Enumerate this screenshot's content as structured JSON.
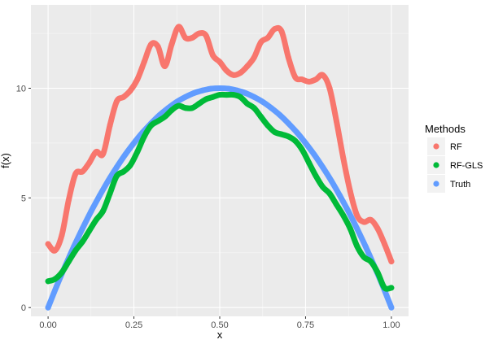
{
  "chart_data": {
    "type": "scatter",
    "title": "",
    "xlabel": "x",
    "ylabel": "f(x)",
    "xlim": [
      -0.05,
      1.05
    ],
    "ylim": [
      -0.4,
      13.8
    ],
    "x_ticks": [
      0.0,
      0.25,
      0.5,
      0.75,
      1.0
    ],
    "x_tick_labels": [
      "0.00",
      "0.25",
      "0.50",
      "0.75",
      "1.00"
    ],
    "y_ticks": [
      0,
      5,
      10
    ],
    "y_tick_labels": [
      "0",
      "5",
      "10"
    ],
    "background": "#ebebeb",
    "grid": true,
    "legend": {
      "title": "Methods",
      "position": "right"
    },
    "series": [
      {
        "name": "RF",
        "color": "#F8766D",
        "x": [
          0.0,
          0.02,
          0.04,
          0.06,
          0.08,
          0.1,
          0.12,
          0.14,
          0.16,
          0.18,
          0.2,
          0.22,
          0.24,
          0.26,
          0.28,
          0.3,
          0.32,
          0.34,
          0.36,
          0.38,
          0.4,
          0.42,
          0.44,
          0.46,
          0.48,
          0.5,
          0.52,
          0.54,
          0.56,
          0.58,
          0.6,
          0.62,
          0.64,
          0.66,
          0.68,
          0.7,
          0.72,
          0.74,
          0.76,
          0.78,
          0.8,
          0.82,
          0.84,
          0.86,
          0.88,
          0.9,
          0.92,
          0.94,
          0.96,
          0.98,
          1.0
        ],
        "y": [
          2.9,
          2.6,
          3.3,
          4.9,
          6.1,
          6.2,
          6.6,
          7.1,
          7.0,
          8.3,
          9.4,
          9.6,
          9.9,
          10.4,
          11.2,
          12.0,
          11.9,
          11.0,
          12.0,
          12.8,
          12.3,
          12.3,
          12.5,
          12.4,
          11.5,
          11.2,
          10.8,
          10.6,
          10.7,
          11.0,
          11.4,
          12.1,
          12.3,
          12.7,
          12.6,
          11.4,
          10.5,
          10.4,
          10.3,
          10.4,
          10.6,
          10.0,
          8.5,
          6.8,
          5.3,
          4.2,
          3.9,
          4.0,
          3.6,
          2.9,
          2.1
        ]
      },
      {
        "name": "RF-GLS",
        "color": "#00BA38",
        "x": [
          0.0,
          0.02,
          0.04,
          0.06,
          0.08,
          0.1,
          0.12,
          0.14,
          0.16,
          0.18,
          0.2,
          0.22,
          0.24,
          0.26,
          0.28,
          0.3,
          0.32,
          0.34,
          0.36,
          0.38,
          0.4,
          0.42,
          0.44,
          0.46,
          0.48,
          0.5,
          0.52,
          0.54,
          0.56,
          0.58,
          0.6,
          0.62,
          0.64,
          0.66,
          0.68,
          0.7,
          0.72,
          0.74,
          0.76,
          0.78,
          0.8,
          0.82,
          0.84,
          0.86,
          0.88,
          0.9,
          0.92,
          0.94,
          0.96,
          0.98,
          1.0
        ],
        "y": [
          1.2,
          1.3,
          1.6,
          2.1,
          2.6,
          3.0,
          3.5,
          4.0,
          4.4,
          5.2,
          6.0,
          6.2,
          6.5,
          7.1,
          7.8,
          8.3,
          8.5,
          8.7,
          9.0,
          9.2,
          9.1,
          9.1,
          9.3,
          9.5,
          9.6,
          9.7,
          9.7,
          9.7,
          9.6,
          9.3,
          9.1,
          8.7,
          8.3,
          8.0,
          7.9,
          7.8,
          7.6,
          7.2,
          6.6,
          6.0,
          5.5,
          5.2,
          4.7,
          4.2,
          3.6,
          2.8,
          2.3,
          2.1,
          1.6,
          0.9,
          0.9
        ]
      },
      {
        "name": "Truth",
        "color": "#619CFF",
        "x": [
          0.0,
          0.025,
          0.05,
          0.075,
          0.1,
          0.125,
          0.15,
          0.175,
          0.2,
          0.225,
          0.25,
          0.275,
          0.3,
          0.325,
          0.35,
          0.375,
          0.4,
          0.425,
          0.45,
          0.475,
          0.5,
          0.525,
          0.55,
          0.575,
          0.6,
          0.625,
          0.65,
          0.675,
          0.7,
          0.725,
          0.75,
          0.775,
          0.8,
          0.825,
          0.85,
          0.875,
          0.9,
          0.925,
          0.95,
          0.975,
          1.0
        ],
        "y": [
          0.0,
          0.98,
          1.9,
          2.78,
          3.6,
          4.38,
          5.1,
          5.78,
          6.4,
          6.98,
          7.5,
          7.98,
          8.4,
          8.78,
          9.1,
          9.38,
          9.6,
          9.78,
          9.9,
          9.98,
          10.0,
          9.98,
          9.9,
          9.78,
          9.6,
          9.38,
          9.1,
          8.78,
          8.4,
          7.98,
          7.5,
          6.98,
          6.4,
          5.78,
          5.1,
          4.38,
          3.6,
          2.78,
          1.9,
          0.98,
          0.0
        ]
      }
    ]
  }
}
